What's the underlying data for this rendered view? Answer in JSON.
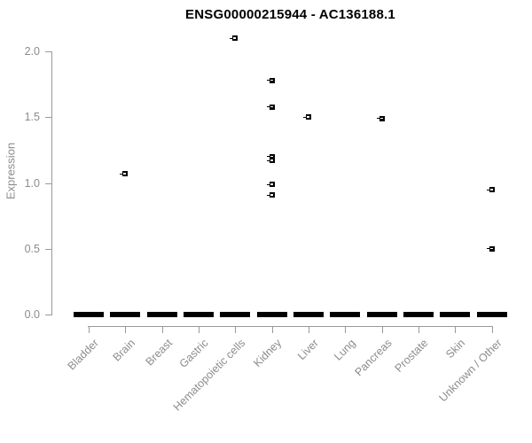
{
  "title": "ENSG00000215944 - AC136188.1",
  "colors": {
    "background": "#ffffff",
    "title_text": "#000000",
    "axis_line": "#9a9a9a",
    "axis_text": "#8c8c8c",
    "point_color": "#000000",
    "point_median_dash": "#ffffff"
  },
  "chart_data": {
    "type": "scatter",
    "title": "ENSG00000215944 - AC136188.1",
    "xlabel": "",
    "ylabel": "Expression",
    "ylim": [
      0.0,
      2.0
    ],
    "y_ticks": [
      0.0,
      0.5,
      1.0,
      1.5,
      2.0
    ],
    "y_tick_labels": [
      "0.0",
      "0.5",
      "1.0",
      "1.5",
      "2.0"
    ],
    "grid": false,
    "legend": false,
    "marker": "small black square with white median dash and short left whisker",
    "categories": [
      "Bladder",
      "Brain",
      "Breast",
      "Gastric",
      "Hematopoietic cells",
      "Kidney",
      "Liver",
      "Lung",
      "Pancreas",
      "Prostate",
      "Skin",
      "Unknown / Other"
    ],
    "zero_clusters": "every category shows a dense solid black cluster of samples at expression 0.0",
    "points": [
      {
        "category": "Brain",
        "value": 1.07
      },
      {
        "category": "Hematopoietic cells",
        "value": 2.1
      },
      {
        "category": "Kidney",
        "value": 1.78
      },
      {
        "category": "Kidney",
        "value": 1.58
      },
      {
        "category": "Kidney",
        "value": 1.2
      },
      {
        "category": "Kidney",
        "value": 1.17
      },
      {
        "category": "Kidney",
        "value": 0.99
      },
      {
        "category": "Kidney",
        "value": 0.91
      },
      {
        "category": "Liver",
        "value": 1.5
      },
      {
        "category": "Pancreas",
        "value": 1.49
      },
      {
        "category": "Unknown / Other",
        "value": 0.95
      },
      {
        "category": "Unknown / Other",
        "value": 0.5
      }
    ]
  }
}
